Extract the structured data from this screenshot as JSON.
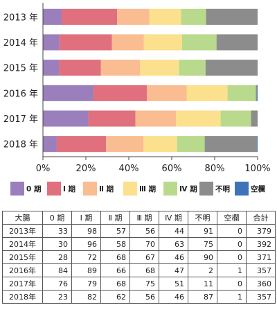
{
  "chart_data": {
    "type": "bar",
    "orientation": "horizontal",
    "stacked": true,
    "normalized": true,
    "categories": [
      "2013 年",
      "2014 年",
      "2015 年",
      "2016 年",
      "2017 年",
      "2018 年"
    ],
    "series": [
      {
        "name": "0 期",
        "values": [
          33,
          30,
          28,
          84,
          76,
          23
        ],
        "color": "#9b7fbd"
      },
      {
        "name": "Ⅰ 期",
        "values": [
          98,
          96,
          72,
          89,
          79,
          82
        ],
        "color": "#e0707d"
      },
      {
        "name": "Ⅱ 期",
        "values": [
          57,
          58,
          68,
          66,
          68,
          62
        ],
        "color": "#f9bd91"
      },
      {
        "name": "Ⅲ 期",
        "values": [
          56,
          70,
          67,
          68,
          75,
          56
        ],
        "color": "#fbe08e"
      },
      {
        "name": "Ⅳ 期",
        "values": [
          44,
          63,
          46,
          47,
          51,
          46
        ],
        "color": "#b9da8c"
      },
      {
        "name": "不明",
        "values": [
          91,
          75,
          90,
          2,
          11,
          87
        ],
        "color": "#8c8c8c"
      },
      {
        "name": "空欄",
        "values": [
          0,
          0,
          0,
          1,
          0,
          1
        ],
        "color": "#3d74b8"
      }
    ],
    "xlim": [
      0,
      100
    ],
    "xticks": [
      "0%",
      "20%",
      "40%",
      "60%",
      "80%",
      "100%"
    ],
    "grid": false,
    "legend_position": "bottom"
  },
  "table": {
    "headers": [
      "大腸",
      "0 期",
      "Ⅰ 期",
      "Ⅱ 期",
      "Ⅲ 期",
      "Ⅳ 期",
      "不明",
      "空欄",
      "合計"
    ],
    "rows": [
      {
        "label": "2013年",
        "values": [
          "33",
          "98",
          "57",
          "56",
          "44",
          "91",
          "0",
          "379"
        ]
      },
      {
        "label": "2014年",
        "values": [
          "30",
          "96",
          "58",
          "70",
          "63",
          "75",
          "0",
          "392"
        ]
      },
      {
        "label": "2015年",
        "values": [
          "28",
          "72",
          "68",
          "67",
          "46",
          "90",
          "0",
          "371"
        ]
      },
      {
        "label": "2016年",
        "values": [
          "84",
          "89",
          "66",
          "68",
          "47",
          "2",
          "1",
          "357"
        ]
      },
      {
        "label": "2017年",
        "values": [
          "76",
          "79",
          "68",
          "75",
          "51",
          "11",
          "0",
          "360"
        ]
      },
      {
        "label": "2018年",
        "values": [
          "23",
          "82",
          "62",
          "56",
          "46",
          "87",
          "1",
          "357"
        ]
      }
    ]
  }
}
